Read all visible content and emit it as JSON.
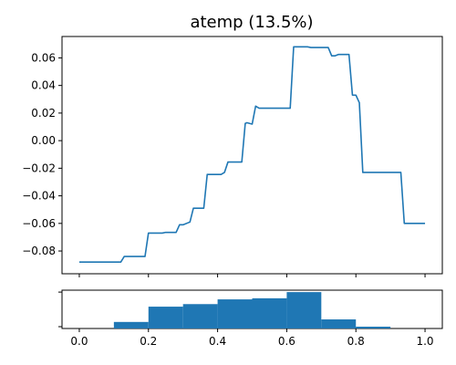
{
  "chart_data": [
    {
      "type": "line",
      "title": "atemp (13.5%)",
      "xlabel": "",
      "ylabel": "",
      "xlim": [
        -0.05,
        1.05
      ],
      "ylim": [
        -0.0965,
        0.0755
      ],
      "yticks": [
        -0.08,
        -0.06,
        -0.04,
        -0.02,
        0.0,
        0.02,
        0.04,
        0.06
      ],
      "ytick_labels": [
        "−0.08",
        "−0.06",
        "−0.04",
        "−0.02",
        "0.00",
        "0.02",
        "0.04",
        "0.06"
      ],
      "grid": false,
      "series": [
        {
          "color": "#1f77b4",
          "x": [
            0.0,
            0.06,
            0.12,
            0.13,
            0.18,
            0.19,
            0.2,
            0.24,
            0.25,
            0.27,
            0.28,
            0.29,
            0.3,
            0.32,
            0.33,
            0.34,
            0.36,
            0.37,
            0.38,
            0.41,
            0.42,
            0.43,
            0.46,
            0.47,
            0.48,
            0.485,
            0.5,
            0.51,
            0.52,
            0.53,
            0.54,
            0.56,
            0.6,
            0.61,
            0.62,
            0.66,
            0.67,
            0.72,
            0.73,
            0.74,
            0.75,
            0.76,
            0.78,
            0.79,
            0.8,
            0.81,
            0.82,
            0.83,
            0.9,
            0.93,
            0.94,
            0.95,
            0.98,
            1.0
          ],
          "y": [
            -0.088,
            -0.088,
            -0.088,
            -0.084,
            -0.084,
            -0.084,
            -0.067,
            -0.067,
            -0.0665,
            -0.0665,
            -0.0665,
            -0.061,
            -0.061,
            -0.059,
            -0.049,
            -0.049,
            -0.049,
            -0.0245,
            -0.0245,
            -0.0245,
            -0.023,
            -0.0155,
            -0.0155,
            -0.0155,
            0.0125,
            0.013,
            0.012,
            0.025,
            0.0235,
            0.0235,
            0.0235,
            0.0235,
            0.0235,
            0.0235,
            0.068,
            0.068,
            0.0675,
            0.0675,
            0.0615,
            0.0615,
            0.0625,
            0.0625,
            0.0625,
            0.033,
            0.033,
            0.0275,
            -0.023,
            -0.023,
            -0.023,
            -0.023,
            -0.06,
            -0.06,
            -0.06,
            -0.06
          ]
        }
      ]
    },
    {
      "type": "bar",
      "title": "",
      "xlabel": "",
      "ylabel": "",
      "xlim": [
        -0.05,
        1.05
      ],
      "xticks": [
        0.0,
        0.2,
        0.4,
        0.6,
        0.8,
        1.0
      ],
      "xtick_labels": [
        "0.0",
        "0.2",
        "0.4",
        "0.6",
        "0.8",
        "1.0"
      ],
      "bin_edges": [
        0.0,
        0.1,
        0.2,
        0.3,
        0.4,
        0.5,
        0.6,
        0.7,
        0.8,
        0.9,
        1.0
      ],
      "values": [
        0,
        0.18,
        0.6,
        0.67,
        0.8,
        0.83,
        1.0,
        0.25,
        0.05,
        0
      ],
      "color": "#1f77b4"
    }
  ]
}
